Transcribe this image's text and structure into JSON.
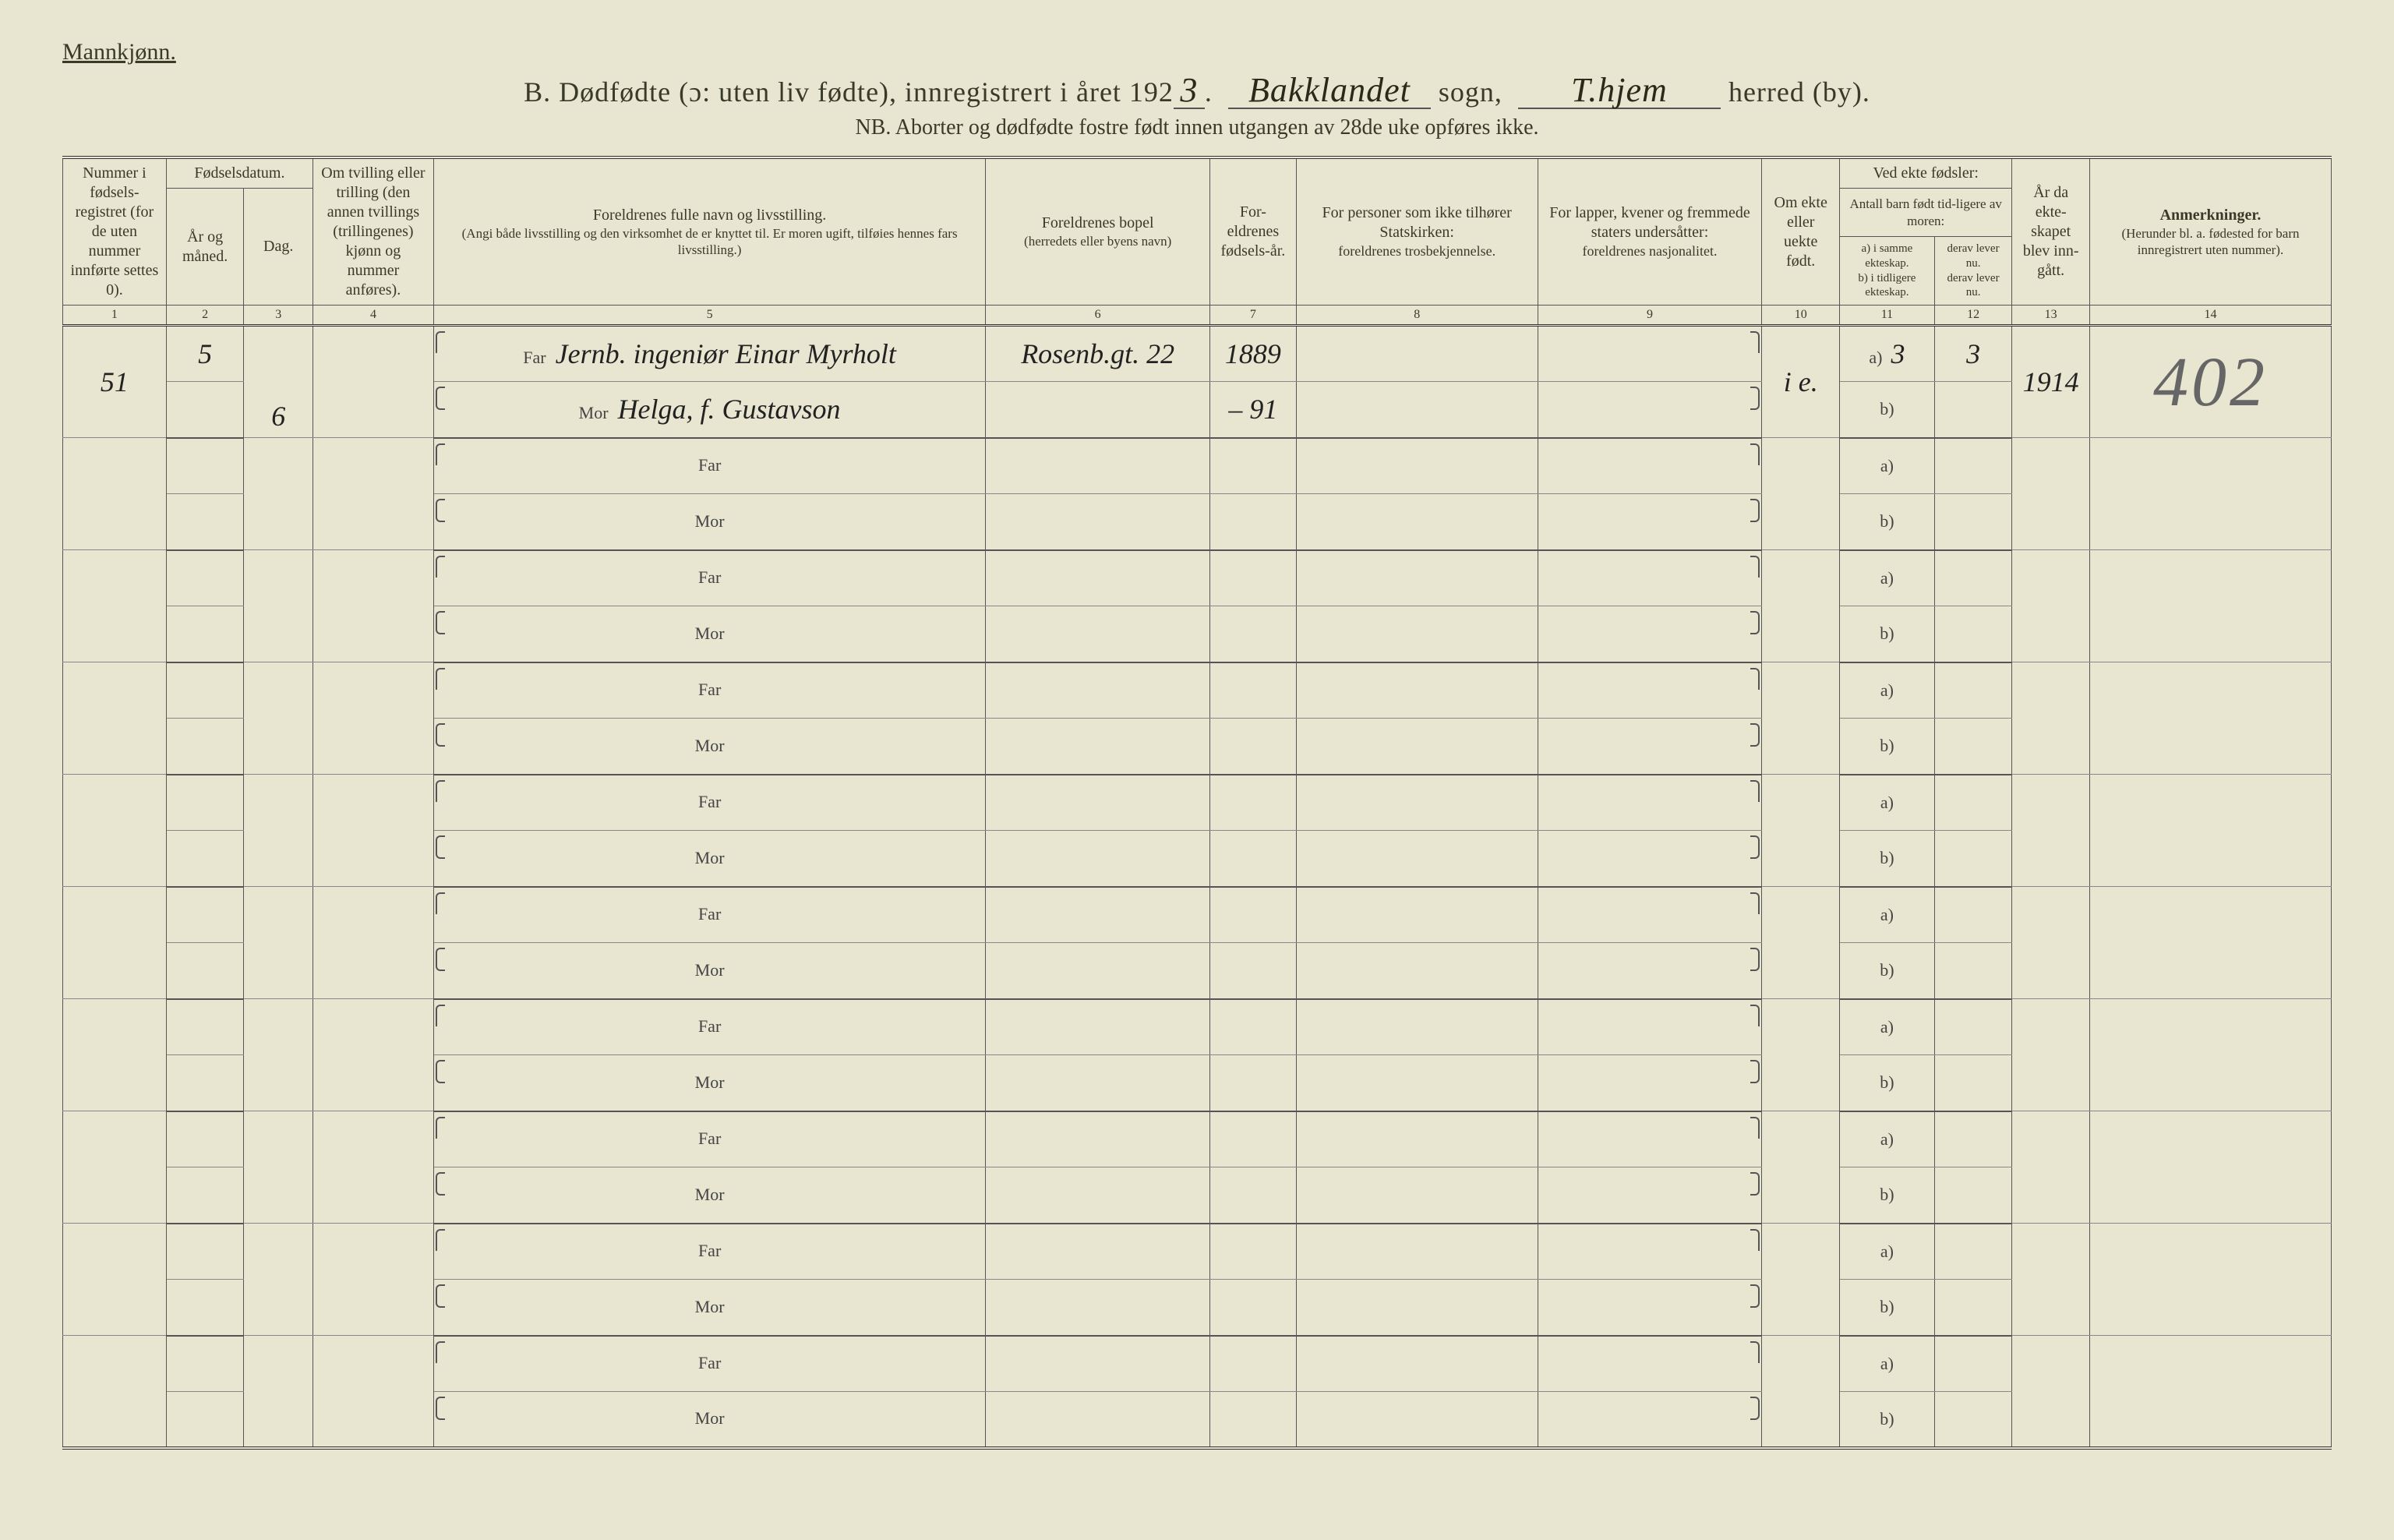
{
  "header": {
    "gender": "Mannkjønn.",
    "title_prefix": "B.   Dødfødte (ɔ: uten liv fødte), innregistrert i året 192",
    "year_suffix": "3",
    "sogn_value": "Bakklandet",
    "sogn_label": "sogn,",
    "herred_value": "T.hjem",
    "herred_label": "herred (by).",
    "subtitle": "NB.  Aborter og dødfødte fostre født innen utgangen av 28de uke opføres ikke."
  },
  "columns": {
    "c1": "Nummer i fødsels-registret (for de uten nummer innførte settes 0).",
    "c2_group": "Fødselsdatum.",
    "c2": "År og måned.",
    "c3": "Dag.",
    "c4": "Om tvilling eller trilling (den annen tvillings (trillingenes) kjønn og nummer anføres).",
    "c5_title": "Foreldrenes fulle navn og livsstilling.",
    "c5_sub": "(Angi både livsstilling og den virksomhet de er knyttet til. Er moren ugift, tilføies hennes fars livsstilling.)",
    "c6_title": "Foreldrenes bopel",
    "c6_sub": "(herredets eller byens navn)",
    "c7": "For-eldrenes fødsels-år.",
    "c8_title": "For personer som ikke tilhører Statskirken:",
    "c8_sub": "foreldrenes trosbekjennelse.",
    "c9_title": "For lapper, kvener og fremmede staters undersåtter:",
    "c9_sub": "foreldrenes nasjonalitet.",
    "c10": "Om ekte eller uekte født.",
    "c11_12_group": "Ved ekte fødsler:",
    "c11_12_sub": "Antall barn født tid-ligere av moren:",
    "c11a": "a) i samme ekteskap.",
    "c11b": "b) i tidligere ekteskap.",
    "c12a": "derav lever nu.",
    "c12b": "derav lever nu.",
    "c13": "År da ekte-skapet blev inn-gått.",
    "c14_title": "Anmerkninger.",
    "c14_sub": "(Herunder bl. a. fødested for barn innregistrert uten nummer).",
    "colnums": [
      "1",
      "2",
      "3",
      "4",
      "5",
      "6",
      "7",
      "8",
      "9",
      "10",
      "11",
      "12",
      "13",
      "14"
    ]
  },
  "row_labels": {
    "far": "Far",
    "mor": "Mor",
    "a": "a)",
    "b": "b)"
  },
  "entries": [
    {
      "number": "51",
      "year_month": "5",
      "day": "6",
      "far_name": "Jernb. ingeniør Einar Myrholt",
      "mor_name": "Helga, f. Gustavson",
      "bopel": "Rosenb.gt. 22",
      "far_year": "1889",
      "mor_year": "– 91",
      "ekte": "i e.",
      "c11": "3",
      "c12": "3",
      "c13": "1914",
      "remark": "402"
    }
  ],
  "style": {
    "background": "#e8e6d0",
    "text_color": "#3a3a2a",
    "rule_color": "#555555",
    "handwriting_color": "#222222",
    "remark_color": "#666666"
  }
}
